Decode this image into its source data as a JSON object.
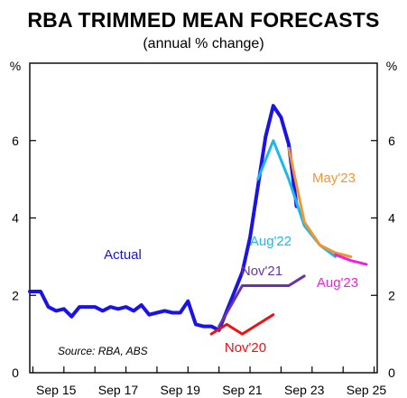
{
  "chart_data": {
    "type": "line",
    "title": "RBA TRIMMED MEAN FORECASTS",
    "subtitle": "(annual % change)",
    "ylabel_left": "%",
    "ylabel_right": "%",
    "ylim": [
      0,
      8
    ],
    "yticks": [
      "0",
      "2",
      "4",
      "6"
    ],
    "xlim": [
      2014.9,
      2026.1
    ],
    "xticks": [
      {
        "label": "Sep 15",
        "x": 2015.75
      },
      {
        "label": "Sep 17",
        "x": 2017.75
      },
      {
        "label": "Sep 19",
        "x": 2019.75
      },
      {
        "label": "Sep 21",
        "x": 2021.75
      },
      {
        "label": "Sep 23",
        "x": 2023.75
      },
      {
        "label": "Sep 25",
        "x": 2025.75
      }
    ],
    "grid": false,
    "source": "Source: RBA, ABS",
    "series": [
      {
        "name": "Actual",
        "color": "#1a12e6",
        "width": 4,
        "x": [
          2014.9,
          2015.25,
          2015.5,
          2015.75,
          2016.0,
          2016.25,
          2016.5,
          2016.75,
          2017.0,
          2017.25,
          2017.5,
          2017.75,
          2018.0,
          2018.25,
          2018.5,
          2018.75,
          2019.0,
          2019.25,
          2019.5,
          2019.75,
          2020.0,
          2020.25,
          2020.5,
          2020.75,
          2021.0,
          2021.25,
          2021.5,
          2021.75,
          2022.0,
          2022.25,
          2022.5,
          2022.75,
          2023.0,
          2023.25,
          2023.5
        ],
        "y": [
          2.1,
          2.1,
          1.7,
          1.6,
          1.65,
          1.45,
          1.7,
          1.7,
          1.7,
          1.6,
          1.7,
          1.65,
          1.7,
          1.6,
          1.75,
          1.5,
          1.55,
          1.6,
          1.55,
          1.55,
          1.85,
          1.25,
          1.2,
          1.2,
          1.1,
          1.6,
          2.1,
          2.6,
          3.5,
          4.8,
          6.1,
          6.9,
          6.6,
          5.9,
          4.3
        ]
      },
      {
        "name": "Nov'20",
        "color": "#ee1111",
        "width": 3,
        "x": [
          2020.75,
          2021.25,
          2021.75,
          2022.25,
          2022.75
        ],
        "y": [
          1.0,
          1.25,
          1.0,
          1.25,
          1.5
        ]
      },
      {
        "name": "Nov'21",
        "color": "#6633aa",
        "width": 3,
        "x": [
          2021.0,
          2021.75,
          2022.25,
          2022.75,
          2023.25,
          2023.75
        ],
        "y": [
          1.2,
          2.25,
          2.25,
          2.25,
          2.25,
          2.5
        ]
      },
      {
        "name": "Aug'22",
        "color": "#1cb8ea",
        "width": 3,
        "x": [
          2022.25,
          2022.75,
          2023.25,
          2023.75,
          2024.25,
          2024.75
        ],
        "y": [
          5.0,
          6.0,
          5.0,
          3.8,
          3.3,
          3.0
        ]
      },
      {
        "name": "May'23",
        "color": "#f39433",
        "width": 3,
        "x": [
          2023.25,
          2023.75,
          2024.25,
          2024.75,
          2025.25
        ],
        "y": [
          5.8,
          3.9,
          3.3,
          3.1,
          3.0
        ]
      },
      {
        "name": "Aug'23",
        "color": "#ee22dd",
        "width": 3,
        "x": [
          2024.75,
          2025.25,
          2025.75
        ],
        "y": [
          3.05,
          2.9,
          2.8
        ]
      }
    ],
    "annotations": [
      {
        "text": "Actual",
        "color": "#1a12e6"
      },
      {
        "text": "Nov'20",
        "color": "#ee1111"
      },
      {
        "text": "Nov'21",
        "color": "#6633aa"
      },
      {
        "text": "Aug'22",
        "color": "#1cb8ea"
      },
      {
        "text": "May'23",
        "color": "#f39433"
      },
      {
        "text": "Aug'23",
        "color": "#ee22dd"
      }
    ]
  }
}
